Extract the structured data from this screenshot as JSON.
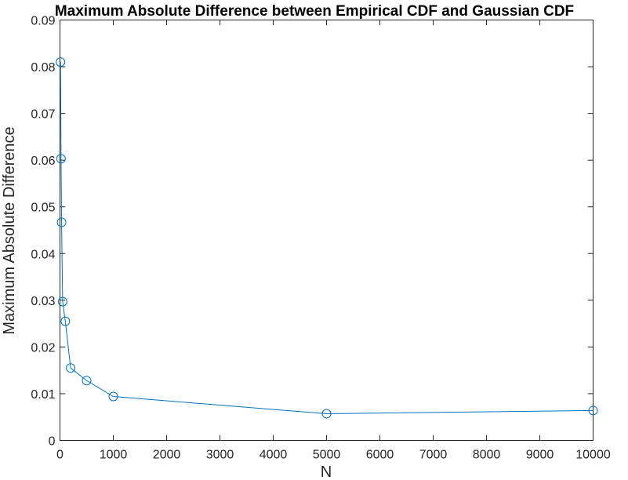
{
  "chart_data": {
    "type": "line",
    "title": "Maximum Absolute Difference between Empirical CDF and Gaussian CDF",
    "xlabel": "N",
    "ylabel": "Maximum Absolute Difference",
    "xlim": [
      0,
      10000
    ],
    "ylim": [
      0,
      0.09
    ],
    "xticks": [
      0,
      1000,
      2000,
      3000,
      4000,
      5000,
      6000,
      7000,
      8000,
      9000,
      10000
    ],
    "xtick_labels": [
      "0",
      "1000",
      "2000",
      "3000",
      "4000",
      "5000",
      "6000",
      "7000",
      "8000",
      "9000",
      "10000"
    ],
    "yticks": [
      0,
      0.01,
      0.02,
      0.03,
      0.04,
      0.05,
      0.06,
      0.07,
      0.08,
      0.09
    ],
    "ytick_labels": [
      "0",
      "0.01",
      "0.02",
      "0.03",
      "0.04",
      "0.05",
      "0.06",
      "0.07",
      "0.08",
      "0.09"
    ],
    "grid": false,
    "legend": false,
    "marker": "circle",
    "series": [
      {
        "color": "#0072bd",
        "x": [
          10,
          20,
          30,
          50,
          100,
          200,
          500,
          1000,
          5000,
          10000
        ],
        "y": [
          0.081,
          0.0603,
          0.0467,
          0.0297,
          0.0255,
          0.0155,
          0.0128,
          0.0094,
          0.0057,
          0.0064
        ]
      }
    ]
  }
}
